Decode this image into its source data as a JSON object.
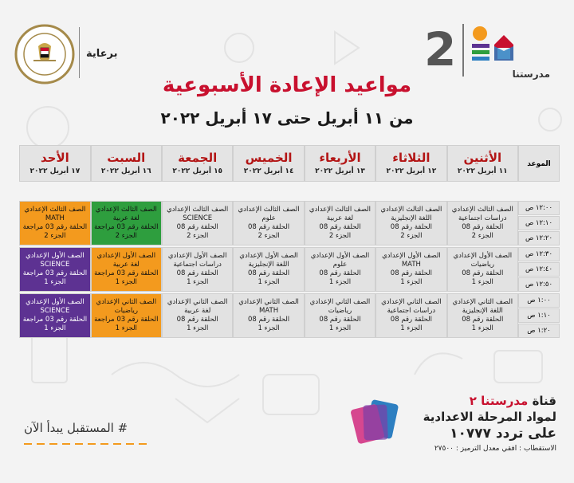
{
  "sponsor": {
    "label": "برعاية"
  },
  "logo": {
    "number": "2",
    "name": "مدرستنا"
  },
  "title": "مواعيد الإعادة الأسبوعية",
  "subtitle": "من ١١ أبريل حتى ١٧ أبريل ٢٠٢٢",
  "time_header": "الموعد",
  "days": [
    {
      "name": "الأثنين",
      "date": "١١ أبريل ٢٠٢٢"
    },
    {
      "name": "الثلاثاء",
      "date": "١٢ أبريل ٢٠٢٢"
    },
    {
      "name": "الأربعاء",
      "date": "١٣ أبريل ٢٠٢٢"
    },
    {
      "name": "الخميس",
      "date": "١٤ أبريل ٢٠٢٢"
    },
    {
      "name": "الجمعة",
      "date": "١٥ أبريل ٢٠٢٢"
    },
    {
      "name": "السبت",
      "date": "١٦ أبريل ٢٠٢٢"
    },
    {
      "name": "الأحد",
      "date": "١٧ أبريل ٢٠٢٢"
    }
  ],
  "times": [
    "١٢:٠٠ ص",
    "١٢:١٠ ص",
    "١٢:٢٠ ص",
    "١٢:٣٠ ص",
    "١٢:٤٠ ص",
    "١٢:٥٠ ص",
    "١:٠٠ ص",
    "١:١٠ ص",
    "١:٢٠ ص"
  ],
  "rows": [
    [
      {
        "l1": "الصف الثالث الإعدادي",
        "l2": "دراسات اجتماعية",
        "l3": "الحلقة رقم 08",
        "l4": "الجزء 2",
        "color": "gray"
      },
      {
        "l1": "الصف الثالث الإعدادي",
        "l2": "اللغة الإنجليزية",
        "l3": "الحلقة رقم 08",
        "l4": "الجزء 2",
        "color": "gray"
      },
      {
        "l1": "الصف الثالث الإعدادي",
        "l2": "لغة عربية",
        "l3": "الحلقة رقم 08",
        "l4": "الجزء 2",
        "color": "gray"
      },
      {
        "l1": "الصف الثالث الإعدادي",
        "l2": "علوم",
        "l3": "الحلقة رقم 08",
        "l4": "الجزء 2",
        "color": "gray"
      },
      {
        "l1": "الصف الثالث الإعدادي",
        "l2": "SCIENCE",
        "l3": "الحلقة رقم 08",
        "l4": "الجزء 2",
        "color": "gray"
      },
      {
        "l1": "الصف الثالث الإعدادي",
        "l2": "لغة عربية",
        "l3": "الحلقة رقم 03 مراجعة",
        "l4": "الجزء 2",
        "color": "green"
      },
      {
        "l1": "الصف الثالث الإعدادي",
        "l2": "MATH",
        "l3": "الحلقة رقم 03 مراجعة",
        "l4": "الجزء 2",
        "color": "orange"
      }
    ],
    [
      {
        "l1": "الصف الأول الإعدادي",
        "l2": "رياضيات",
        "l3": "الحلقة رقم 08",
        "l4": "الجزء 1",
        "color": "gray"
      },
      {
        "l1": "الصف الأول الإعدادي",
        "l2": "MATH",
        "l3": "الحلقة رقم 08",
        "l4": "الجزء 1",
        "color": "gray"
      },
      {
        "l1": "الصف الأول الإعدادي",
        "l2": "علوم",
        "l3": "الحلقة رقم 08",
        "l4": "الجزء 1",
        "color": "gray"
      },
      {
        "l1": "الصف الأول الإعدادي",
        "l2": "اللغة الإنجليزية",
        "l3": "الحلقة رقم 08",
        "l4": "الجزء 1",
        "color": "gray"
      },
      {
        "l1": "الصف الأول الإعدادي",
        "l2": "دراسات اجتماعية",
        "l3": "الحلقة رقم 08",
        "l4": "الجزء 1",
        "color": "gray"
      },
      {
        "l1": "الصف الأول الإعدادي",
        "l2": "لغة عربية",
        "l3": "الحلقة رقم 03 مراجعة",
        "l4": "الجزء 1",
        "color": "orange"
      },
      {
        "l1": "الصف الأول الإعدادي",
        "l2": "SCIENCE",
        "l3": "الحلقة رقم 03 مراجعة",
        "l4": "الجزء 1",
        "color": "purple"
      }
    ],
    [
      {
        "l1": "الصف الثاني الإعدادي",
        "l2": "اللغة الإنجليزية",
        "l3": "الحلقة رقم 08",
        "l4": "الجزء 1",
        "color": "gray"
      },
      {
        "l1": "الصف الثاني الإعدادي",
        "l2": "دراسات اجتماعية",
        "l3": "الحلقة رقم 08",
        "l4": "الجزء 1",
        "color": "gray"
      },
      {
        "l1": "الصف الثاني الإعدادي",
        "l2": "رياضيات",
        "l3": "الحلقة رقم 08",
        "l4": "الجزء 1",
        "color": "gray"
      },
      {
        "l1": "الصف الثاني الإعدادي",
        "l2": "MATH",
        "l3": "الحلقة رقم 08",
        "l4": "الجزء 1",
        "color": "gray"
      },
      {
        "l1": "الصف الثاني الإعدادي",
        "l2": "لغة عربية",
        "l3": "الحلقة رقم 08",
        "l4": "الجزء 1",
        "color": "gray"
      },
      {
        "l1": "الصف الثاني الإعدادي",
        "l2": "رياضيات",
        "l3": "الحلقة رقم 03 مراجعة",
        "l4": "الجزء 1",
        "color": "orange"
      },
      {
        "l1": "الصف الأول الإعدادي",
        "l2": "SCIENCE",
        "l3": "الحلقة رقم 03 مراجعة",
        "l4": "الجزء 1",
        "color": "purple"
      }
    ]
  ],
  "hashtag": "# المستقبل يبدأ الآن",
  "channel": {
    "line1_prefix": "قناة",
    "line1_name": "مدرستنا ٢",
    "line2": "لمواد المرحلة الاعدادية",
    "line3": "على تردد ١٠٧٧٧",
    "line4": "الاستقطاب : افقي معدل الترميز : ٢٧٥٠٠"
  },
  "colors": {
    "red": "#c8102e",
    "orange": "#f39a1e",
    "green": "#2e9e3e",
    "purple": "#5d3292",
    "gray": "#e2e2e2"
  }
}
